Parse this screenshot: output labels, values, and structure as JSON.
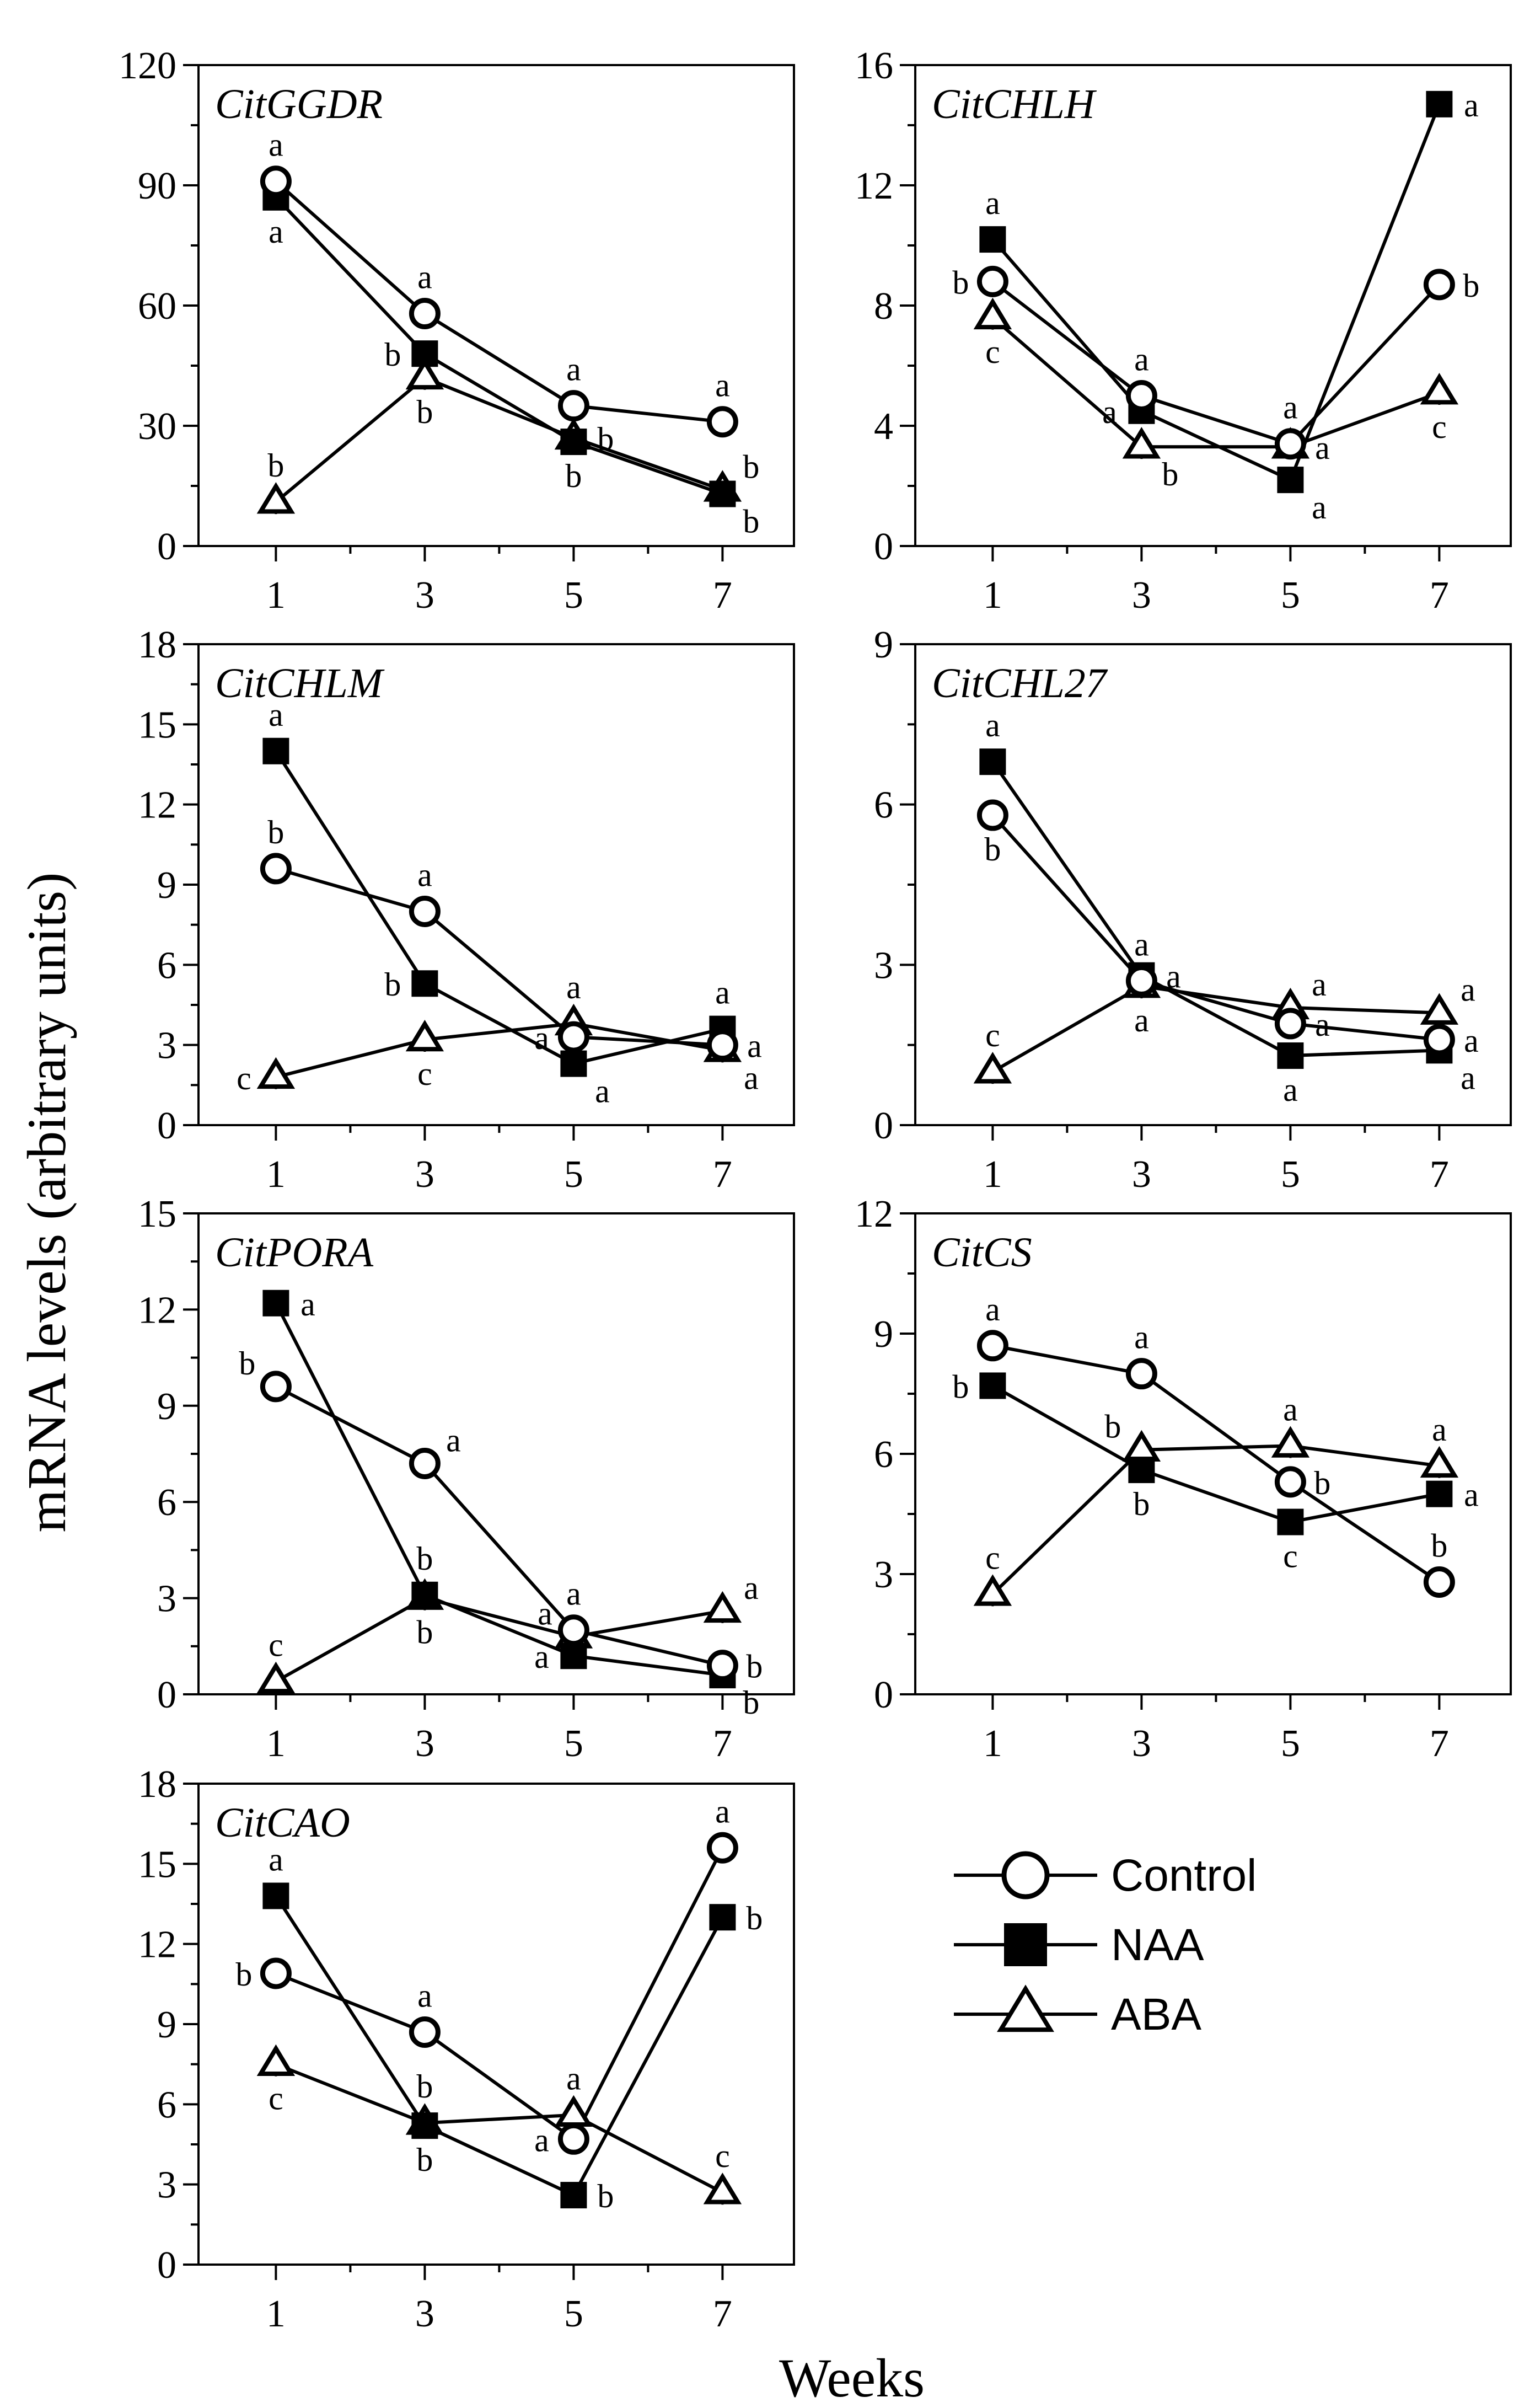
{
  "figure": {
    "ylabel": "mRNA levels (arbitrary units)",
    "xlabel": "Weeks",
    "legend": [
      {
        "name": "Control",
        "marker": "open-circle"
      },
      {
        "name": "NAA",
        "marker": "filled-square"
      },
      {
        "name": "ABA",
        "marker": "open-triangle"
      }
    ],
    "colors": {
      "ink": "#000000",
      "background": "#ffffff"
    }
  },
  "chart_data": [
    {
      "type": "line",
      "title": "CitGGDR",
      "categories": [
        "1",
        "3",
        "5",
        "7"
      ],
      "ylim": [
        0,
        120
      ],
      "yticks": [
        0,
        30,
        60,
        90,
        120
      ],
      "series": [
        {
          "name": "Control",
          "marker": "open-circle",
          "values": [
            91,
            58,
            35,
            31
          ],
          "letters": [
            "a",
            "a",
            "a",
            "a"
          ],
          "letter_side": [
            "above",
            "above",
            "above",
            "above"
          ]
        },
        {
          "name": "NAA",
          "marker": "filled-square",
          "values": [
            87,
            48,
            26,
            13
          ],
          "letters": [
            "a",
            "b",
            "b",
            "b"
          ],
          "letter_side": [
            "below",
            "left",
            "below",
            "right-below"
          ]
        },
        {
          "name": "ABA",
          "marker": "open-triangle",
          "values": [
            11,
            42,
            27,
            14
          ],
          "letters": [
            "b",
            "b",
            "b",
            "b"
          ],
          "letter_side": [
            "above",
            "below",
            "right",
            "right-above"
          ]
        }
      ]
    },
    {
      "type": "line",
      "title": "CitCHLH",
      "categories": [
        "1",
        "3",
        "5",
        "7"
      ],
      "ylim": [
        0,
        16
      ],
      "yticks": [
        0,
        4,
        8,
        12,
        16
      ],
      "series": [
        {
          "name": "Control",
          "marker": "open-circle",
          "values": [
            8.8,
            5.0,
            3.4,
            8.7
          ],
          "letters": [
            "b",
            "a",
            "a",
            "b"
          ],
          "letter_side": [
            "left",
            "above",
            "above",
            "right"
          ]
        },
        {
          "name": "NAA",
          "marker": "filled-square",
          "values": [
            10.2,
            4.5,
            2.2,
            14.7
          ],
          "letters": [
            "a",
            "a",
            "a",
            "a"
          ],
          "letter_side": [
            "above",
            "left",
            "right-below",
            "right"
          ]
        },
        {
          "name": "ABA",
          "marker": "open-triangle",
          "values": [
            7.6,
            3.3,
            3.3,
            5.1
          ],
          "letters": [
            "c",
            "b",
            "a",
            "c"
          ],
          "letter_side": [
            "below",
            "right-below",
            "right",
            "below"
          ]
        }
      ]
    },
    {
      "type": "line",
      "title": "CitCHLM",
      "categories": [
        "1",
        "3",
        "5",
        "7"
      ],
      "ylim": [
        0,
        18
      ],
      "yticks": [
        0,
        3,
        6,
        9,
        12,
        15,
        18
      ],
      "series": [
        {
          "name": "Control",
          "marker": "open-circle",
          "values": [
            9.6,
            8.0,
            3.3,
            3.0
          ],
          "letters": [
            "b",
            "a",
            "a",
            "a"
          ],
          "letter_side": [
            "above",
            "above",
            "left",
            "right"
          ]
        },
        {
          "name": "NAA",
          "marker": "filled-square",
          "values": [
            14.0,
            5.3,
            2.3,
            3.6
          ],
          "letters": [
            "a",
            "b",
            "a",
            "a"
          ],
          "letter_side": [
            "above",
            "left",
            "right-below",
            "above"
          ]
        },
        {
          "name": "ABA",
          "marker": "open-triangle",
          "values": [
            1.8,
            3.2,
            3.8,
            2.8
          ],
          "letters": [
            "c",
            "c",
            "a",
            "a"
          ],
          "letter_side": [
            "left",
            "below",
            "above",
            "right-below"
          ]
        }
      ]
    },
    {
      "type": "line",
      "title": "CitCHL27",
      "categories": [
        "1",
        "3",
        "5",
        "7"
      ],
      "ylim": [
        0,
        9
      ],
      "yticks": [
        0,
        3,
        6,
        9
      ],
      "series": [
        {
          "name": "Control",
          "marker": "open-circle",
          "values": [
            5.8,
            2.7,
            1.9,
            1.6
          ],
          "letters": [
            "b",
            "a",
            "a",
            "a"
          ],
          "letter_side": [
            "below",
            "above",
            "right",
            "right"
          ]
        },
        {
          "name": "NAA",
          "marker": "filled-square",
          "values": [
            6.8,
            2.8,
            1.3,
            1.4
          ],
          "letters": [
            "a",
            "a",
            "a",
            "a"
          ],
          "letter_side": [
            "above",
            "right",
            "below",
            "right-below"
          ]
        },
        {
          "name": "ABA",
          "marker": "open-triangle",
          "values": [
            1.0,
            2.6,
            2.2,
            2.1
          ],
          "letters": [
            "c",
            "a",
            "a",
            "a"
          ],
          "letter_side": [
            "above",
            "below",
            "right-above",
            "right-above"
          ]
        }
      ]
    },
    {
      "type": "line",
      "title": "CitPORA",
      "categories": [
        "1",
        "3",
        "5",
        "7"
      ],
      "ylim": [
        0,
        15
      ],
      "yticks": [
        0,
        3,
        6,
        9,
        12,
        15
      ],
      "series": [
        {
          "name": "Control",
          "marker": "open-circle",
          "values": [
            9.6,
            7.2,
            2.0,
            0.9
          ],
          "letters": [
            "b",
            "a",
            "a",
            "b"
          ],
          "letter_side": [
            "left-above",
            "right-above",
            "above",
            "right"
          ]
        },
        {
          "name": "NAA",
          "marker": "filled-square",
          "values": [
            12.2,
            3.1,
            1.2,
            0.6
          ],
          "letters": [
            "a",
            "b",
            "a",
            "b"
          ],
          "letter_side": [
            "right",
            "above",
            "left",
            "right-below"
          ]
        },
        {
          "name": "ABA",
          "marker": "open-triangle",
          "values": [
            0.4,
            3.0,
            1.8,
            2.6
          ],
          "letters": [
            "c",
            "b",
            "a",
            "a"
          ],
          "letter_side": [
            "above",
            "below",
            "left-above",
            "right-above"
          ]
        }
      ]
    },
    {
      "type": "line",
      "title": "CitCS",
      "categories": [
        "1",
        "3",
        "5",
        "7"
      ],
      "ylim": [
        0,
        12
      ],
      "yticks": [
        0,
        3,
        6,
        9,
        12
      ],
      "series": [
        {
          "name": "Control",
          "marker": "open-circle",
          "values": [
            8.7,
            8.0,
            5.3,
            2.8
          ],
          "letters": [
            "a",
            "a",
            "b",
            "b"
          ],
          "letter_side": [
            "above",
            "above",
            "right",
            "above"
          ]
        },
        {
          "name": "NAA",
          "marker": "filled-square",
          "values": [
            7.7,
            5.6,
            4.3,
            5.0
          ],
          "letters": [
            "b",
            "b",
            "c",
            "a"
          ],
          "letter_side": [
            "left",
            "below",
            "below",
            "right"
          ]
        },
        {
          "name": "ABA",
          "marker": "open-triangle",
          "values": [
            2.5,
            6.1,
            6.2,
            5.7
          ],
          "letters": [
            "c",
            "b",
            "a",
            "a"
          ],
          "letter_side": [
            "above",
            "left-above",
            "above",
            "above"
          ]
        }
      ]
    },
    {
      "type": "line",
      "title": "CitCAO",
      "categories": [
        "1",
        "3",
        "5",
        "7"
      ],
      "ylim": [
        0,
        18
      ],
      "yticks": [
        0,
        3,
        6,
        9,
        12,
        15,
        18
      ],
      "series": [
        {
          "name": "Control",
          "marker": "open-circle",
          "values": [
            10.9,
            8.7,
            4.7,
            15.6
          ],
          "letters": [
            "b",
            "a",
            "a",
            "a"
          ],
          "letter_side": [
            "left",
            "above",
            "left",
            "above"
          ]
        },
        {
          "name": "NAA",
          "marker": "filled-square",
          "values": [
            13.8,
            5.2,
            2.6,
            13.0
          ],
          "letters": [
            "a",
            "b",
            "b",
            "b"
          ],
          "letter_side": [
            "above",
            "below",
            "right",
            "right"
          ]
        },
        {
          "name": "ABA",
          "marker": "open-triangle",
          "values": [
            7.5,
            5.3,
            5.6,
            2.7
          ],
          "letters": [
            "c",
            "b",
            "a",
            "c"
          ],
          "letter_side": [
            "below",
            "above",
            "above",
            "above"
          ]
        }
      ]
    }
  ]
}
